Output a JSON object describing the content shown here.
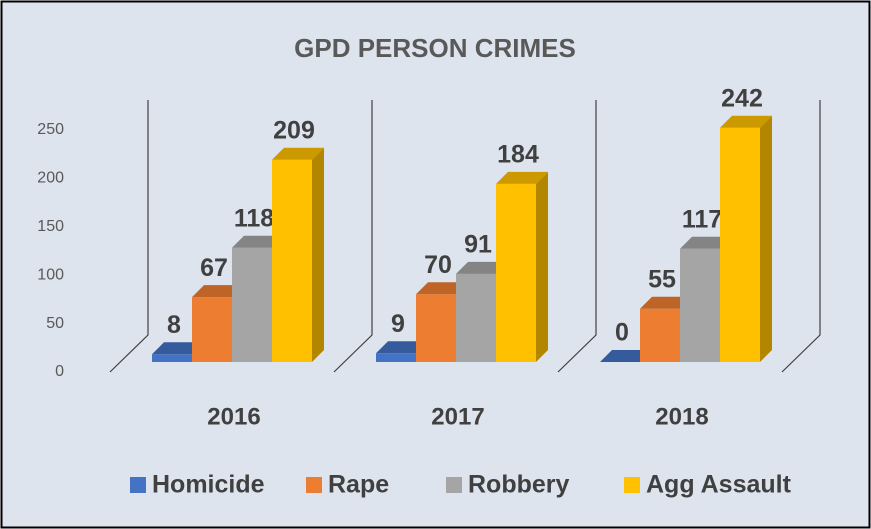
{
  "chart_data": {
    "type": "bar3d",
    "title": "GPD PERSON CRIMES",
    "categories": [
      "2016",
      "2017",
      "2018"
    ],
    "series": [
      {
        "name": "Homicide",
        "color": "#4472c4",
        "values": [
          8,
          9,
          0
        ]
      },
      {
        "name": "Rape",
        "color": "#ed7d31",
        "values": [
          67,
          70,
          55
        ]
      },
      {
        "name": "Robbery",
        "color": "#a5a5a5",
        "values": [
          118,
          91,
          117
        ]
      },
      {
        "name": "Agg Assault",
        "color": "#ffc000",
        "values": [
          209,
          184,
          242
        ]
      }
    ],
    "ylim": [
      0,
      250
    ],
    "yticks": [
      0,
      50,
      100,
      150,
      200,
      250
    ],
    "legend": "bottom"
  }
}
